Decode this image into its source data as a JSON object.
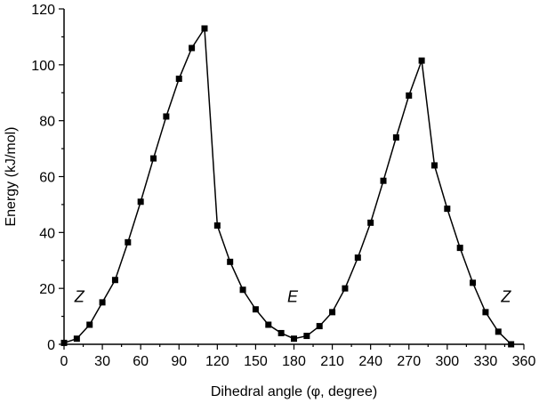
{
  "chart_data": {
    "type": "line",
    "xlabel": "Dihedral angle (φ, degree)",
    "ylabel": "Energy (kJ/mol)",
    "xlim": [
      0,
      360
    ],
    "ylim": [
      0,
      120
    ],
    "x_ticks": [
      0,
      30,
      60,
      90,
      120,
      150,
      180,
      210,
      240,
      270,
      300,
      330,
      360
    ],
    "x_tick_labels": [
      "0",
      "30",
      "60",
      "90",
      "120",
      "150",
      "180",
      "210",
      "240",
      "270",
      "300",
      "330",
      "360"
    ],
    "y_ticks": [
      0,
      20,
      40,
      60,
      80,
      100,
      120
    ],
    "y_tick_labels": [
      "0",
      "20",
      "40",
      "60",
      "80",
      "100",
      "120"
    ],
    "grid": false,
    "legend": "none",
    "series_color": "#000000",
    "marker": "filled-square",
    "series": [
      {
        "x": [
          0,
          10,
          20,
          30,
          40,
          50,
          60,
          70,
          80,
          90,
          100,
          110,
          120,
          130,
          140,
          150,
          160,
          170,
          180,
          190,
          200,
          210,
          220,
          230,
          240,
          250,
          260,
          270,
          280,
          290,
          300,
          310,
          320,
          330,
          340,
          350
        ],
        "values": [
          0.5,
          2,
          7,
          15,
          23,
          36.5,
          51,
          66.5,
          81.5,
          95,
          106,
          113,
          42.5,
          29.5,
          19.5,
          12.5,
          7,
          4,
          2,
          3,
          6.5,
          11.5,
          20,
          31,
          43.5,
          58.5,
          74,
          89,
          101.5,
          64,
          48.5,
          34.5,
          22,
          11.5,
          4.5,
          0
        ]
      }
    ],
    "annotations": [
      {
        "text": "Z",
        "x": 12,
        "y": 17
      },
      {
        "text": "E",
        "x": 179,
        "y": 17
      },
      {
        "text": "Z",
        "x": 346,
        "y": 17
      }
    ]
  }
}
